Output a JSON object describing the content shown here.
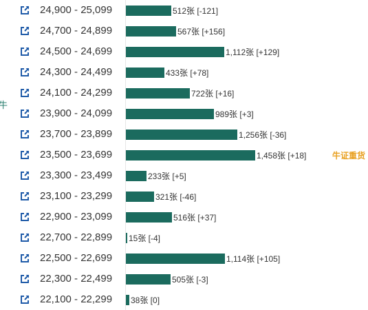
{
  "left_edge_text": "牛",
  "bar_color": "#1b6b5e",
  "badge_color": "#e8a020",
  "icon": "external-link-icon",
  "max_value": 1458,
  "rows": [
    {
      "range": "24,900 - 25,099",
      "value": 512,
      "label": "512张 [-121]"
    },
    {
      "range": "24,700 - 24,899",
      "value": 567,
      "label": "567张 [+156]"
    },
    {
      "range": "24,500 - 24,699",
      "value": 1112,
      "label": "1,112张 [+129]"
    },
    {
      "range": "24,300 - 24,499",
      "value": 433,
      "label": "433张 [+78]"
    },
    {
      "range": "24,100 - 24,299",
      "value": 722,
      "label": "722张 [+16]"
    },
    {
      "range": "23,900 - 24,099",
      "value": 989,
      "label": "989张 [+3]"
    },
    {
      "range": "23,700 - 23,899",
      "value": 1256,
      "label": "1,256张 [-36]"
    },
    {
      "range": "23,500 - 23,699",
      "value": 1458,
      "label": "1,458张 [+18]",
      "badge": "牛证重货"
    },
    {
      "range": "23,300 - 23,499",
      "value": 233,
      "label": "233张 [+5]"
    },
    {
      "range": "23,100 - 23,299",
      "value": 321,
      "label": "321张 [-46]"
    },
    {
      "range": "22,900 - 23,099",
      "value": 516,
      "label": "516张 [+37]"
    },
    {
      "range": "22,700 - 22,899",
      "value": 15,
      "label": "15张 [-4]"
    },
    {
      "range": "22,500 - 22,699",
      "value": 1114,
      "label": "1,114张 [+105]"
    },
    {
      "range": "22,300 - 22,499",
      "value": 505,
      "label": "505张 [-3]"
    },
    {
      "range": "22,100 - 22,299",
      "value": 38,
      "label": "38张 [0]"
    }
  ]
}
